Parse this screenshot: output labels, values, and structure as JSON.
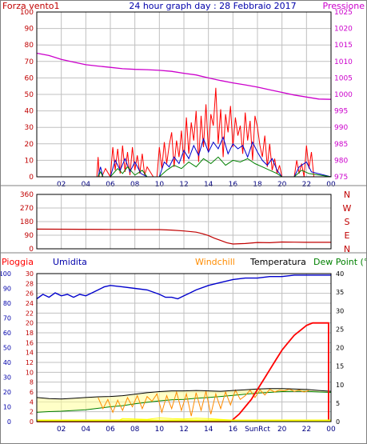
{
  "title": "24 hour graph day : 28 Febbraio 2017",
  "colors": {
    "wind": "#ff0000",
    "wind_avg": "#0000cc",
    "wind_low": "#008000",
    "pressure": "#cc00cc",
    "direction": "#c00000",
    "rain": "#ff0000",
    "humidity": "#0000cc",
    "windchill": "#ff8c00",
    "temperature": "#000000",
    "dewpoint": "#008000",
    "heat": "#ffff00",
    "uv": "#ffff00",
    "grid": "#c0c0c0",
    "frame": "#000000"
  },
  "x_ticks": [
    "02",
    "04",
    "06",
    "08",
    "10",
    "12",
    "14",
    "16",
    "18",
    "20",
    "22",
    "00"
  ],
  "x_ticks_bottom": [
    "02",
    "04",
    "06",
    "08",
    "10",
    "12",
    "14",
    "16",
    "SunRct",
    "20",
    "22",
    "00"
  ],
  "chart_data": [
    {
      "type": "line",
      "name": "wind-pressure",
      "left_label": "Forza vento1",
      "right_label": "Pressione",
      "y_left_ticks": [
        "0",
        "10",
        "20",
        "30",
        "40",
        "50",
        "60",
        "70",
        "80",
        "90",
        "100"
      ],
      "y_right_ticks": [
        "975",
        "980",
        "985",
        "990",
        "995",
        "1000",
        "1005",
        "1010",
        "1015",
        "1020",
        "1025"
      ],
      "ylim_left": [
        0,
        100
      ],
      "ylim_right": [
        975,
        1025
      ],
      "xlim": [
        0,
        24
      ],
      "series": [
        {
          "key": "pressure",
          "x": [
            0,
            1,
            2,
            3,
            4,
            5,
            6,
            7,
            8,
            9,
            10,
            11,
            12,
            13,
            14,
            15,
            16,
            17,
            18,
            19,
            20,
            21,
            22,
            23,
            24
          ],
          "values": [
            1012.5,
            1011.8,
            1010.6,
            1009.8,
            1009.0,
            1008.6,
            1008.2,
            1007.8,
            1007.6,
            1007.5,
            1007.3,
            1007.0,
            1006.4,
            1005.9,
            1005.0,
            1004.2,
            1003.5,
            1002.9,
            1002.2,
            1001.4,
            1000.6,
            999.8,
            999.2,
            998.6,
            998.5
          ]
        },
        {
          "key": "wind",
          "x": [
            0,
            4.9,
            5.0,
            5.1,
            5.3,
            5.6,
            6.0,
            6.2,
            6.4,
            6.6,
            6.8,
            7.0,
            7.2,
            7.4,
            7.6,
            7.8,
            8.0,
            8.2,
            8.4,
            8.6,
            8.8,
            9.0,
            9.5,
            9.8,
            10.0,
            10.2,
            10.4,
            10.6,
            10.8,
            11.0,
            11.2,
            11.4,
            11.6,
            11.8,
            12.0,
            12.2,
            12.4,
            12.6,
            12.8,
            13.0,
            13.2,
            13.4,
            13.6,
            13.8,
            14.0,
            14.2,
            14.4,
            14.6,
            14.8,
            15.0,
            15.2,
            15.4,
            15.6,
            15.8,
            16.0,
            16.2,
            16.4,
            16.6,
            16.8,
            17.0,
            17.2,
            17.4,
            17.6,
            17.8,
            18.0,
            18.2,
            18.4,
            18.6,
            18.8,
            19.0,
            19.2,
            19.4,
            19.6,
            19.8,
            20.0,
            20.5,
            21.0,
            21.2,
            21.4,
            21.6,
            21.8,
            22.0,
            22.2,
            22.4,
            22.6,
            24
          ],
          "values": [
            0,
            0,
            12,
            0,
            0,
            5,
            0,
            18,
            4,
            17,
            2,
            19,
            3,
            15,
            1,
            18,
            4,
            13,
            2,
            14,
            1,
            6,
            0,
            0,
            18,
            5,
            21,
            8,
            19,
            27,
            6,
            22,
            12,
            28,
            8,
            36,
            14,
            33,
            22,
            40,
            9,
            37,
            18,
            44,
            15,
            38,
            31,
            54,
            20,
            41,
            12,
            38,
            27,
            43,
            18,
            36,
            25,
            31,
            14,
            39,
            22,
            34,
            10,
            37,
            30,
            19,
            12,
            25,
            6,
            20,
            4,
            11,
            2,
            7,
            0,
            0,
            0,
            10,
            2,
            8,
            0,
            19,
            5,
            15,
            0,
            0
          ]
        },
        {
          "key": "wind_avg",
          "x": [
            0,
            5.0,
            5.2,
            5.4,
            6.0,
            6.4,
            6.8,
            7.2,
            7.6,
            8.0,
            8.5,
            9.0,
            10.0,
            10.4,
            10.8,
            11.2,
            11.6,
            12.0,
            12.4,
            12.8,
            13.2,
            13.6,
            14.0,
            14.4,
            14.8,
            15.2,
            15.6,
            16.0,
            16.4,
            16.8,
            17.2,
            17.6,
            18.0,
            18.4,
            18.8,
            19.2,
            19.6,
            20.0,
            21.0,
            21.4,
            22.0,
            22.4,
            24
          ],
          "values": [
            0,
            0,
            6,
            0,
            0,
            10,
            4,
            11,
            3,
            9,
            2,
            0,
            0,
            9,
            6,
            12,
            8,
            16,
            11,
            19,
            13,
            23,
            15,
            21,
            17,
            24,
            14,
            20,
            17,
            19,
            12,
            21,
            15,
            10,
            7,
            11,
            4,
            0,
            0,
            6,
            9,
            3,
            0
          ]
        },
        {
          "key": "wind_low",
          "x": [
            0,
            5.0,
            5.2,
            5.4,
            6.0,
            6.6,
            7.0,
            7.4,
            8.0,
            8.6,
            9.0,
            10.0,
            10.6,
            11.2,
            11.8,
            12.4,
            13.0,
            13.6,
            14.2,
            14.8,
            15.4,
            16.0,
            16.6,
            17.2,
            17.8,
            18.4,
            19.0,
            19.6,
            20.0,
            21.0,
            21.6,
            22.2,
            24
          ],
          "values": [
            0,
            0,
            3,
            0,
            0,
            5,
            2,
            6,
            1,
            4,
            0,
            0,
            4,
            7,
            5,
            9,
            6,
            11,
            8,
            12,
            7,
            10,
            9,
            11,
            8,
            6,
            4,
            2,
            0,
            0,
            4,
            2,
            0
          ]
        }
      ]
    },
    {
      "type": "line",
      "name": "wind-direction",
      "y_left_ticks": [
        "0",
        "90",
        "180",
        "270",
        "360"
      ],
      "y_right_ticks": [
        "N",
        "E",
        "S",
        "W",
        "N"
      ],
      "ylim": [
        0,
        360
      ],
      "xlim": [
        0,
        24
      ],
      "series": [
        {
          "key": "direction",
          "x": [
            0,
            6,
            10,
            11,
            12,
            13,
            13.5,
            14,
            14.5,
            15,
            15.5,
            16,
            17,
            18,
            19,
            20,
            21,
            22,
            23,
            24
          ],
          "values": [
            130,
            128,
            127,
            124,
            118,
            110,
            100,
            88,
            70,
            55,
            40,
            32,
            35,
            42,
            40,
            45,
            44,
            43,
            43,
            43
          ]
        }
      ]
    },
    {
      "type": "line",
      "name": "temperature-humidity",
      "legend": [
        "Pioggia",
        "Umidita",
        "Windchill",
        "Temperatura",
        "Dew Point (°C"
      ],
      "y_humidity_ticks": [
        "0",
        "10",
        "20",
        "30",
        "40",
        "50",
        "60",
        "70",
        "80",
        "90",
        "100"
      ],
      "y_rain_ticks": [
        "0",
        "2",
        "4",
        "6",
        "8",
        "10",
        "12",
        "14",
        "16",
        "18",
        "20",
        "22",
        "24",
        "26",
        "28",
        "30"
      ],
      "y_temp_ticks": [
        "0",
        "5",
        "10",
        "15",
        "20",
        "25",
        "30",
        "35",
        "40"
      ],
      "ylim_humidity": [
        0,
        100
      ],
      "ylim_rain": [
        0,
        30
      ],
      "ylim_temp": [
        0,
        40
      ],
      "xlim": [
        0,
        24
      ],
      "series": [
        {
          "key": "humidity",
          "x": [
            0,
            0.5,
            1,
            1.5,
            2,
            2.5,
            3,
            3.5,
            4,
            4.5,
            5,
            5.5,
            6,
            7,
            8,
            9,
            10,
            10.5,
            11,
            11.5,
            12,
            12.5,
            13,
            14,
            15,
            16,
            17,
            18,
            19,
            20,
            21,
            22,
            23,
            24
          ],
          "values": [
            83,
            86,
            84,
            87,
            85,
            86,
            84,
            86,
            85,
            87,
            89,
            91,
            92,
            91,
            90,
            89,
            86,
            84,
            84,
            83,
            85,
            87,
            89,
            92,
            94,
            96,
            97,
            97,
            98,
            98,
            99,
            99,
            99,
            99
          ]
        },
        {
          "key": "rain",
          "x": [
            0,
            15.8,
            16.5,
            17,
            17.5,
            18,
            18.5,
            19,
            19.5,
            20,
            20.5,
            21,
            21.5,
            22,
            22.5,
            23.8,
            23.8
          ],
          "values": [
            0,
            0,
            1.5,
            3,
            4.5,
            6.5,
            8.5,
            10.5,
            12.5,
            14.5,
            16,
            17.5,
            18.5,
            19.5,
            20,
            20,
            0
          ]
        },
        {
          "key": "temperature",
          "x": [
            0,
            1,
            2,
            3,
            4,
            5,
            6,
            7,
            8,
            9,
            10,
            11,
            12,
            13,
            14,
            15,
            16,
            17,
            18,
            19,
            20,
            21,
            22,
            23,
            24
          ],
          "values": [
            6.5,
            6.2,
            6.1,
            6.3,
            6.5,
            6.7,
            6.8,
            7.0,
            7.4,
            7.8,
            8.1,
            8.3,
            8.3,
            8.4,
            8.3,
            8.2,
            8.4,
            8.6,
            8.8,
            8.9,
            8.9,
            8.8,
            8.7,
            8.4,
            8.2
          ]
        },
        {
          "key": "dewpoint",
          "x": [
            0,
            1,
            2,
            3,
            4,
            5,
            6,
            7,
            8,
            9,
            10,
            11,
            12,
            13,
            14,
            15,
            16,
            17,
            18,
            19,
            20,
            21,
            22,
            23,
            24
          ],
          "values": [
            2.5,
            2.7,
            2.8,
            3.0,
            3.2,
            3.6,
            4.0,
            4.3,
            4.8,
            5.2,
            5.6,
            5.9,
            6.0,
            6.3,
            6.5,
            6.8,
            7.1,
            7.4,
            7.7,
            7.9,
            8.1,
            8.2,
            8.2,
            8.0,
            7.9
          ]
        },
        {
          "key": "windchill",
          "x": [
            5.0,
            5.4,
            5.8,
            6.2,
            6.6,
            7.0,
            7.4,
            7.8,
            8.2,
            8.6,
            9.0,
            9.4,
            9.8,
            10.2,
            10.6,
            11.0,
            11.4,
            11.8,
            12.2,
            12.6,
            13.0,
            13.4,
            13.8,
            14.2,
            14.6,
            15.0,
            15.4,
            15.8,
            16.2,
            16.6,
            17.0,
            17.4,
            17.8,
            18.2,
            18.6,
            19.0,
            19.4,
            19.8,
            20.2,
            20.6,
            21.0,
            21.4,
            21.8,
            22.2
          ],
          "values": [
            6.5,
            3.5,
            6.0,
            2.5,
            5.8,
            3.0,
            6.5,
            4.0,
            7.0,
            3.5,
            6.8,
            5.5,
            7.5,
            2.5,
            7.0,
            3.5,
            8.0,
            3.0,
            7.5,
            1.5,
            7.8,
            3.0,
            8.2,
            2.0,
            7.5,
            3.5,
            8.0,
            4.5,
            8.5,
            6.0,
            7.0,
            8.5,
            6.5,
            8.6,
            7.2,
            8.7,
            8.0,
            8.5,
            8.3,
            8.8,
            8.2,
            8.5,
            8.0,
            8.4
          ]
        },
        {
          "key": "uv",
          "x": [
            0,
            6.5,
            7,
            9,
            10,
            11,
            12,
            13,
            14,
            15,
            16,
            24
          ],
          "values": [
            0,
            0,
            0.8,
            0.6,
            1.0,
            0.8,
            0.7,
            0.9,
            0.8,
            0.6,
            0.4,
            0
          ]
        }
      ]
    }
  ]
}
